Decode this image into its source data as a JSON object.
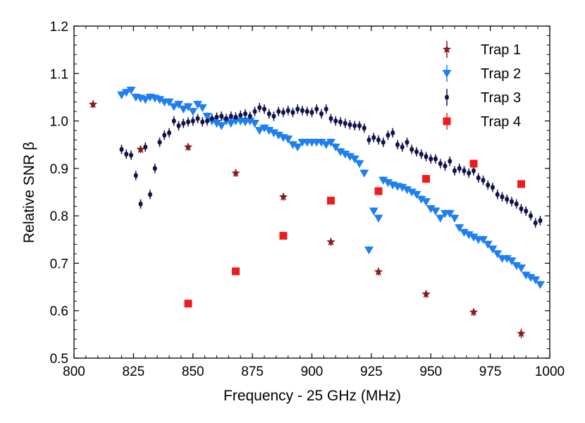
{
  "chart_data": {
    "type": "scatter",
    "title": "",
    "xlabel": "Frequency - 25 GHz (MHz)",
    "ylabel": "Relative SNR β",
    "xlim": [
      800,
      1000
    ],
    "ylim": [
      0.5,
      1.2
    ],
    "xticks": [
      800,
      825,
      850,
      875,
      900,
      925,
      950,
      975,
      1000
    ],
    "yticks": [
      0.5,
      0.6,
      0.7,
      0.8,
      0.9,
      1.0,
      1.1,
      1.2
    ],
    "xtick_labels": [
      "800",
      "825",
      "850",
      "875",
      "900",
      "925",
      "950",
      "975",
      "1000"
    ],
    "ytick_labels": [
      "0.5",
      "0.6",
      "0.7",
      "0.8",
      "0.9",
      "1.0",
      "1.1",
      "1.2"
    ],
    "legend_position": "top-right",
    "grid": false,
    "series": [
      {
        "name": "Trap 1",
        "marker": "star",
        "color": "#8b1a1a",
        "x": [
          808,
          828,
          848,
          868,
          888,
          908,
          928,
          948,
          968,
          988
        ],
        "y": [
          1.035,
          0.94,
          0.945,
          0.89,
          0.84,
          0.745,
          0.682,
          0.635,
          0.597,
          0.552
        ],
        "err": [
          0.008,
          0.008,
          0.008,
          0.008,
          0.008,
          0.008,
          0.008,
          0.008,
          0.008,
          0.01
        ]
      },
      {
        "name": "Trap 2",
        "marker": "triangle-down",
        "color": "#1e7ff0",
        "x": [
          820,
          822,
          824,
          826,
          828,
          830,
          832,
          834,
          836,
          838,
          840,
          842,
          844,
          846,
          848,
          850,
          852,
          854,
          856,
          858,
          860,
          862,
          864,
          866,
          868,
          870,
          872,
          874,
          876,
          878,
          880,
          882,
          884,
          886,
          888,
          890,
          892,
          894,
          896,
          898,
          900,
          902,
          904,
          906,
          908,
          910,
          912,
          914,
          916,
          918,
          920,
          922,
          924,
          926,
          928,
          930,
          932,
          934,
          936,
          938,
          940,
          942,
          944,
          946,
          948,
          950,
          952,
          954,
          956,
          958,
          960,
          962,
          964,
          966,
          968,
          970,
          972,
          974,
          976,
          978,
          980,
          982,
          984,
          986,
          988,
          990,
          992,
          994,
          996
        ],
        "y": [
          1.055,
          1.06,
          1.065,
          1.05,
          1.048,
          1.045,
          1.05,
          1.048,
          1.045,
          1.04,
          1.04,
          1.03,
          1.035,
          1.025,
          1.03,
          1.02,
          1.035,
          1.028,
          1.01,
          1.0,
          0.995,
          0.99,
          1.0,
          0.995,
          1.0,
          1.0,
          0.998,
          1.0,
          0.995,
          0.98,
          0.985,
          0.98,
          0.975,
          0.97,
          0.965,
          0.962,
          0.95,
          0.945,
          0.955,
          0.955,
          0.955,
          0.955,
          0.955,
          0.95,
          0.955,
          0.945,
          0.935,
          0.93,
          0.925,
          0.92,
          0.91,
          0.89,
          0.728,
          0.81,
          0.795,
          0.875,
          0.87,
          0.865,
          0.862,
          0.86,
          0.855,
          0.85,
          0.845,
          0.835,
          0.83,
          0.815,
          0.81,
          0.795,
          0.805,
          0.805,
          0.795,
          0.775,
          0.765,
          0.76,
          0.755,
          0.75,
          0.75,
          0.74,
          0.73,
          0.72,
          0.71,
          0.71,
          0.705,
          0.695,
          0.69,
          0.675,
          0.67,
          0.665,
          0.655
        ],
        "err": [
          0.008,
          0.008,
          0.008,
          0.008,
          0.008,
          0.008,
          0.008,
          0.008,
          0.008,
          0.008,
          0.008,
          0.008,
          0.008,
          0.008,
          0.008,
          0.008,
          0.008,
          0.008,
          0.008,
          0.008,
          0.008,
          0.008,
          0.008,
          0.008,
          0.008,
          0.008,
          0.008,
          0.008,
          0.008,
          0.008,
          0.008,
          0.008,
          0.008,
          0.008,
          0.008,
          0.008,
          0.008,
          0.008,
          0.008,
          0.008,
          0.008,
          0.008,
          0.008,
          0.008,
          0.008,
          0.008,
          0.008,
          0.008,
          0.008,
          0.008,
          0.008,
          0.008,
          0.008,
          0.008,
          0.008,
          0.008,
          0.008,
          0.008,
          0.008,
          0.008,
          0.008,
          0.008,
          0.008,
          0.008,
          0.008,
          0.008,
          0.008,
          0.008,
          0.008,
          0.008,
          0.008,
          0.008,
          0.008,
          0.008,
          0.008,
          0.008,
          0.008,
          0.008,
          0.008,
          0.008,
          0.008,
          0.008,
          0.008,
          0.008,
          0.008,
          0.008,
          0.008,
          0.008,
          0.008
        ]
      },
      {
        "name": "Trap 3",
        "marker": "dot",
        "color": "#12124a",
        "x": [
          820,
          822,
          824,
          826,
          828,
          830,
          832,
          834,
          836,
          838,
          840,
          842,
          844,
          846,
          848,
          850,
          852,
          854,
          856,
          858,
          860,
          862,
          864,
          866,
          868,
          870,
          872,
          874,
          876,
          878,
          880,
          882,
          884,
          886,
          888,
          890,
          892,
          894,
          896,
          898,
          900,
          902,
          904,
          906,
          908,
          910,
          912,
          914,
          916,
          918,
          920,
          922,
          924,
          926,
          928,
          930,
          932,
          934,
          936,
          938,
          940,
          942,
          944,
          946,
          948,
          950,
          952,
          954,
          956,
          958,
          960,
          962,
          964,
          966,
          968,
          970,
          972,
          974,
          976,
          978,
          980,
          982,
          984,
          986,
          988,
          990,
          992,
          994,
          996
        ],
        "y": [
          0.94,
          0.93,
          0.928,
          0.885,
          0.825,
          0.945,
          0.845,
          0.9,
          0.955,
          0.97,
          0.975,
          1.0,
          0.99,
          0.995,
          0.998,
          1.0,
          1.005,
          0.998,
          1.0,
          1.005,
          1.008,
          1.01,
          1.005,
          1.01,
          1.008,
          1.012,
          1.015,
          1.01,
          1.02,
          1.028,
          1.025,
          1.015,
          1.01,
          1.02,
          1.018,
          1.022,
          1.018,
          1.025,
          1.022,
          1.02,
          1.018,
          1.025,
          1.015,
          1.025,
          1.005,
          1.0,
          0.998,
          0.995,
          0.992,
          0.99,
          0.99,
          0.985,
          0.96,
          0.965,
          0.96,
          0.955,
          0.97,
          0.975,
          0.95,
          0.945,
          0.955,
          0.94,
          0.935,
          0.93,
          0.925,
          0.92,
          0.92,
          0.91,
          0.905,
          0.915,
          0.895,
          0.9,
          0.895,
          0.89,
          0.895,
          0.88,
          0.875,
          0.865,
          0.86,
          0.845,
          0.84,
          0.835,
          0.83,
          0.825,
          0.815,
          0.81,
          0.8,
          0.785,
          0.79
        ],
        "err": [
          0.01,
          0.01,
          0.01,
          0.01,
          0.01,
          0.01,
          0.01,
          0.01,
          0.01,
          0.01,
          0.01,
          0.01,
          0.01,
          0.01,
          0.01,
          0.01,
          0.01,
          0.01,
          0.01,
          0.01,
          0.01,
          0.01,
          0.01,
          0.01,
          0.01,
          0.01,
          0.01,
          0.01,
          0.01,
          0.01,
          0.01,
          0.01,
          0.01,
          0.01,
          0.01,
          0.01,
          0.01,
          0.01,
          0.01,
          0.01,
          0.01,
          0.01,
          0.01,
          0.01,
          0.01,
          0.01,
          0.01,
          0.01,
          0.01,
          0.01,
          0.01,
          0.01,
          0.01,
          0.01,
          0.01,
          0.01,
          0.01,
          0.01,
          0.01,
          0.01,
          0.01,
          0.01,
          0.01,
          0.01,
          0.01,
          0.01,
          0.01,
          0.01,
          0.01,
          0.01,
          0.01,
          0.01,
          0.01,
          0.01,
          0.01,
          0.01,
          0.01,
          0.01,
          0.01,
          0.01,
          0.01,
          0.01,
          0.01,
          0.01,
          0.01,
          0.01,
          0.01,
          0.01,
          0.01
        ]
      },
      {
        "name": "Trap 4",
        "marker": "square",
        "color": "#ee1c1c",
        "x": [
          848,
          868,
          888,
          908,
          928,
          948,
          968,
          988
        ],
        "y": [
          0.615,
          0.683,
          0.758,
          0.832,
          0.852,
          0.878,
          0.91,
          0.867
        ],
        "err": [
          0.008,
          0.006,
          0.006,
          0.008,
          0.008,
          0.006,
          0.006,
          0.006
        ]
      }
    ]
  }
}
